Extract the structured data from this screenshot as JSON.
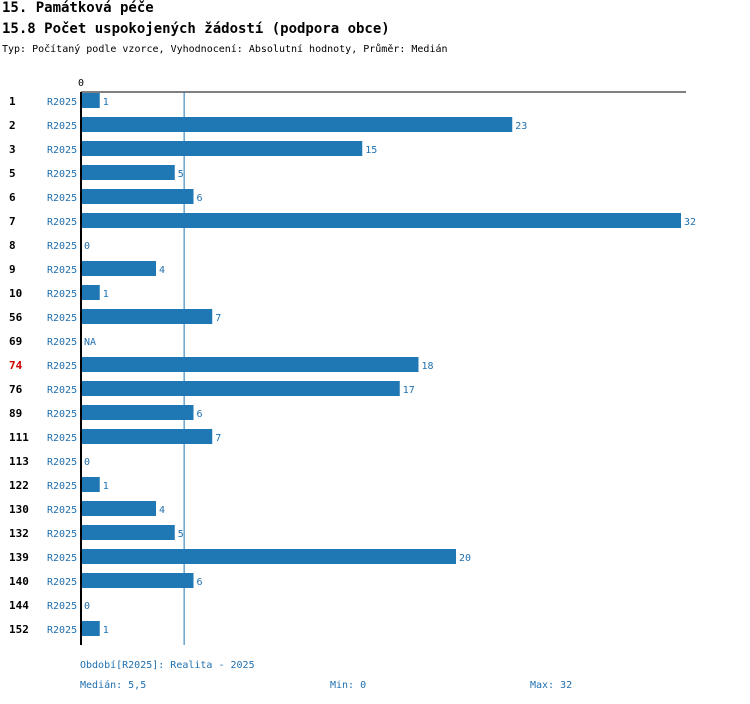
{
  "header": {
    "section_title": "15. Památková péče",
    "chart_title": "15.8 Počet uspokojených žádostí (podpora obce)",
    "subtitle": "Typ: Počítaný podle vzorce, Vyhodnocení: Absolutní hodnoty, Průměr: Medián"
  },
  "footer": {
    "period": "Období[R2025]: Realita - 2025",
    "median": "Medián: 5,5",
    "min": "Min: 0",
    "max": "Max: 32"
  },
  "colors": {
    "bar": "#1f77b4",
    "label": "#1f6fae",
    "highlight": "#d00000",
    "axis": "#000000"
  },
  "chart_data": {
    "type": "bar",
    "orientation": "horizontal",
    "title": "15.8 Počet uspokojených žádostí (podpora obce)",
    "x_tick_label": "0",
    "xlim": [
      0,
      32
    ],
    "median": 5.5,
    "series_label": "R2025",
    "highlighted": "74",
    "categories": [
      "1",
      "2",
      "3",
      "5",
      "6",
      "7",
      "8",
      "9",
      "10",
      "56",
      "69",
      "74",
      "76",
      "89",
      "111",
      "113",
      "122",
      "130",
      "132",
      "139",
      "140",
      "144",
      "152"
    ],
    "values": [
      1,
      23,
      15,
      5,
      6,
      32,
      0,
      4,
      1,
      7,
      null,
      18,
      17,
      6,
      7,
      0,
      1,
      4,
      5,
      20,
      6,
      0,
      1
    ],
    "value_labels": [
      "1",
      "23",
      "15",
      "5",
      "6",
      "32",
      "0",
      "4",
      "1",
      "7",
      "NA",
      "18",
      "17",
      "6",
      "7",
      "0",
      "1",
      "4",
      "5",
      "20",
      "6",
      "0",
      "1"
    ]
  }
}
